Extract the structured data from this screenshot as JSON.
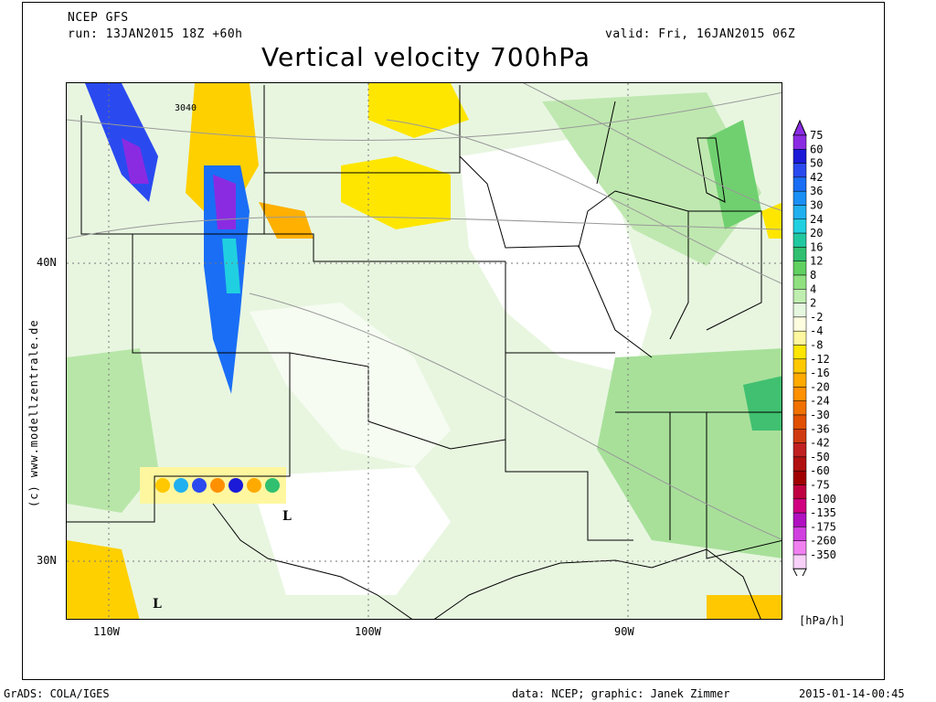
{
  "header": {
    "model": "NCEP GFS",
    "run": "run: 13JAN2015 18Z +60h",
    "valid": "valid: Fri, 16JAN2015 06Z",
    "title": "Vertical velocity 700hPa"
  },
  "map": {
    "lat_labels": [
      "40N",
      "30N"
    ],
    "lon_labels": [
      "110W",
      "100W",
      "90W"
    ],
    "contour_label": "3040",
    "low_marker": "L",
    "sidebar_text": "(c) www.modellzentrale.de"
  },
  "legend": {
    "values": [
      "75",
      "60",
      "50",
      "42",
      "36",
      "30",
      "24",
      "20",
      "16",
      "12",
      "8",
      "4",
      "2",
      "-2",
      "-4",
      "-8",
      "-12",
      "-16",
      "-20",
      "-24",
      "-30",
      "-36",
      "-42",
      "-50",
      "-60",
      "-75",
      "-100",
      "-135",
      "-175",
      "-260",
      "-350"
    ],
    "colors": [
      "#8a2be2",
      "#1a1ad8",
      "#2a4af0",
      "#1a6ef5",
      "#1a8ff5",
      "#20b0f0",
      "#20d0e0",
      "#20c8a0",
      "#30c070",
      "#60d060",
      "#90e080",
      "#c0eeb0",
      "#e6f7e0",
      "#fffde0",
      "#fff7a0",
      "#ffe600",
      "#ffc800",
      "#ffaa00",
      "#ff9000",
      "#f07000",
      "#e05000",
      "#d03a10",
      "#c02020",
      "#b01010",
      "#a00000",
      "#c00040",
      "#d00080",
      "#b010c0",
      "#d040e0",
      "#f080f0",
      "#f8d0f8"
    ],
    "unit": "[hPa/h]"
  },
  "footer": {
    "left": "GrADS: COLA/IGES",
    "center": "data: NCEP; graphic: Janek Zimmer",
    "right": "2015-01-14-00:45"
  }
}
